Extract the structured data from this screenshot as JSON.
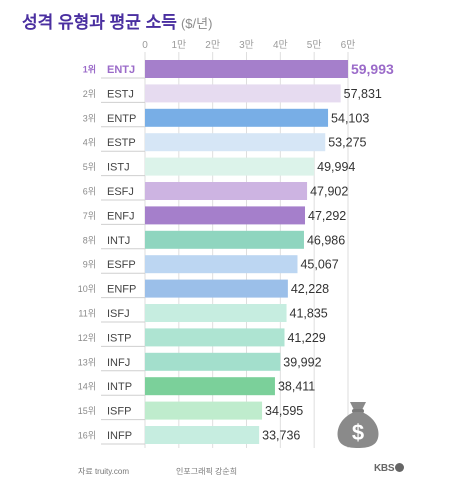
{
  "title": "성격 유형과 평균 소득",
  "title_unit": "($/년)",
  "source": "자료 truity.com",
  "credit": "인포그래픽 강순희",
  "logo": "KBS",
  "colors": {
    "purple": "#a57fcb",
    "lavender": "#e6dbf0",
    "blue": "#78aee6",
    "light_blue": "#d6e6f6",
    "mint_light": "#dcf3ea",
    "lilac": "#cdb4e2",
    "teal": "#8fd5bf",
    "sky": "#bcd6f2",
    "periwinkle": "#9bbfe9",
    "mint_pale": "#c6ede0",
    "mint": "#aee4d2",
    "green": "#7bd09a",
    "green_light": "#bfeccd",
    "teal_light": "#a3dfcc",
    "title": "#4a2fa0",
    "rank1": "#9b6bc9"
  },
  "chart_data": {
    "type": "bar",
    "orientation": "horizontal",
    "title": "성격 유형과 평균 소득",
    "unit": "$/년",
    "xlim": [
      0,
      60000
    ],
    "x_ticks": [
      0,
      10000,
      20000,
      30000,
      40000,
      50000,
      60000
    ],
    "x_tick_labels": [
      "0",
      "1만",
      "2만",
      "3만",
      "4만",
      "5만",
      "6만"
    ],
    "grid": true,
    "ranks": [
      "1위",
      "2위",
      "3위",
      "4위",
      "5위",
      "6위",
      "7위",
      "8위",
      "9위",
      "10위",
      "11위",
      "12위",
      "13위",
      "14위",
      "15위",
      "16위"
    ],
    "categories": [
      "ENTJ",
      "ESTJ",
      "ENTP",
      "ESTP",
      "ISTJ",
      "ESFJ",
      "ENFJ",
      "INTJ",
      "ESFP",
      "ENFP",
      "ISFJ",
      "ISTP",
      "INFJ",
      "INTP",
      "ISFP",
      "INFP"
    ],
    "values": [
      59993,
      57831,
      54103,
      53275,
      49994,
      47902,
      47292,
      46986,
      45067,
      42228,
      41835,
      41229,
      39992,
      38411,
      34595,
      33736
    ],
    "value_labels": [
      "59,993",
      "57,831",
      "54,103",
      "53,275",
      "49,994",
      "47,902",
      "47,292",
      "46,986",
      "45,067",
      "42,228",
      "41,835",
      "41,229",
      "39,992",
      "38,411",
      "34,595",
      "33,736"
    ],
    "bar_colors": [
      "#a57fcb",
      "#e6dbf0",
      "#78aee6",
      "#d6e6f6",
      "#dcf3ea",
      "#cdb4e2",
      "#a57fcb",
      "#8fd5bf",
      "#bcd6f2",
      "#9bbfe9",
      "#c6ede0",
      "#aee4d2",
      "#a3dfcc",
      "#7bd09a",
      "#bfeccd",
      "#c6ede0"
    ]
  }
}
